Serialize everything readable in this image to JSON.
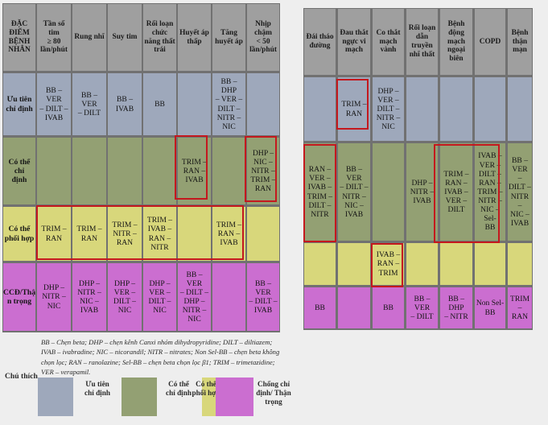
{
  "colors": {
    "header_bg": "#9f9f9f",
    "priority": "#9ea8bb",
    "possible": "#93a073",
    "combine": "#d8d77b",
    "contra": "#cb6ed0",
    "highlight": "#c4181e"
  },
  "left_table": {
    "headers": [
      "ĐẶC\nĐIỂM\nBỆNH\nNHÂN",
      "Tần số\ntim\n≥ 80\nlần/phút",
      "Rung nhĩ",
      "Suy tim",
      "Rối loạn\nchức\nnăng thất\ntrái",
      "Huyết áp\nthấp",
      "Tăng\nhuyết áp",
      "Nhịp\nchậm\n< 50\nlần/phút"
    ],
    "rows": [
      {
        "label": "Ưu tiên\nchỉ định",
        "cells": [
          "BB – VER\n– DILT –\nIVAB",
          "BB – VER\n– DILT",
          "BB –\nIVAB",
          "BB",
          "",
          "BB – DHP\n– VER –\nDILT –\nNITR –\nNIC",
          ""
        ]
      },
      {
        "label": "Có thể chỉ\nđịnh",
        "cells": [
          "",
          "",
          "",
          "",
          "TRIM –\nRAN –\nIVAB",
          "",
          "DHP –\nNIC –\nNITR –\nTRIM –\nRAN"
        ]
      },
      {
        "label": "Có thể\nphối hợp",
        "cells": [
          "TRIM –\nRAN",
          "TRIM –\nRAN",
          "TRIM –\nNITR –\nRAN",
          "TRIM –\nIVAB –\nRAN –\nNITR",
          "",
          "TRIM –\nRAN –\nIVAB",
          ""
        ]
      },
      {
        "label": "CCĐ/Thậ\nn trọng",
        "cells": [
          "DHP –\nNITR –\nNIC",
          "DHP –\nNITR –\nNIC –\nIVAB",
          "DHP –\nVER –\nDILT –\nNIC",
          "DHP –\nVER –\nDILT –\nNIC",
          "BB – VER\n– DILT –\nDHP –\nNITR –\nNIC",
          "",
          "BB – VER\n– DILT –\nIVAB"
        ]
      }
    ]
  },
  "right_table": {
    "headers": [
      "Đái tháo\nđường",
      "Đau thắt\nngực vi\nmạch",
      "Co thắt\nmạch\nvành",
      "Rối loạn\ndẫn\ntruyền\nnhĩ thất",
      "Bệnh\nđộng\nmạch\nngoại\nbiên",
      "COPD",
      "Bệnh\nthận mạn"
    ],
    "rows": [
      {
        "cells": [
          "",
          "TRIM –\nRAN",
          "DHP –\nVER –\nDILT –\nNITR –\nNIC",
          "",
          "",
          "",
          ""
        ]
      },
      {
        "cells": [
          "RAN –\nVER –\nIVAB –\nTRIM –\nDILT –\nNITR",
          "BB – VER\n– DILT –\nNITR –\nNIC –\nIVAB",
          "",
          "DHP –\nNITR –\nIVAB",
          "TRIM –\nRAN –\nIVAB –\nVER –\nDILT",
          "IVAB –\nVER –\nDILT –\nRAN –\nTRIM –\nNITR –\nNIC – Sel-\nBB",
          "BB – VER\n– DILT –\nNITR –\nNIC –\nIVAB"
        ]
      },
      {
        "cells": [
          "",
          "",
          "IVAB –\nRAN –\nTRIM",
          "",
          "",
          "",
          ""
        ]
      },
      {
        "cells": [
          "BB",
          "",
          "BB",
          "BB – VER\n– DILT",
          "BB – DHP\n– NITR",
          "Non Sel-\nBB",
          "TRIM –\nRAN"
        ]
      }
    ]
  },
  "legend": {
    "note": "BB – Chẹn beta; DHP – chẹn kênh Canxi nhóm dihydropyridine; DILT – diltiazem; IVAB – ivabradine; NIC – nicorandil; NITR – nitrates; Non Sel-BB – chẹn beta không chọn lọc; RAN – ranolazine; Sel-BB – chẹn beta chọn lọc β1; TRIM – trimetazidine; VER – verapamil.",
    "title": "Chú thích",
    "items": [
      {
        "label": "Ưu tiên\nchỉ định"
      },
      {
        "label": "Có thể\nchỉ định"
      },
      {
        "label": "Có thể\nphối hợp"
      },
      {
        "label": "Chống chỉ\nđịnh/ Thận\ntrọng"
      }
    ]
  }
}
